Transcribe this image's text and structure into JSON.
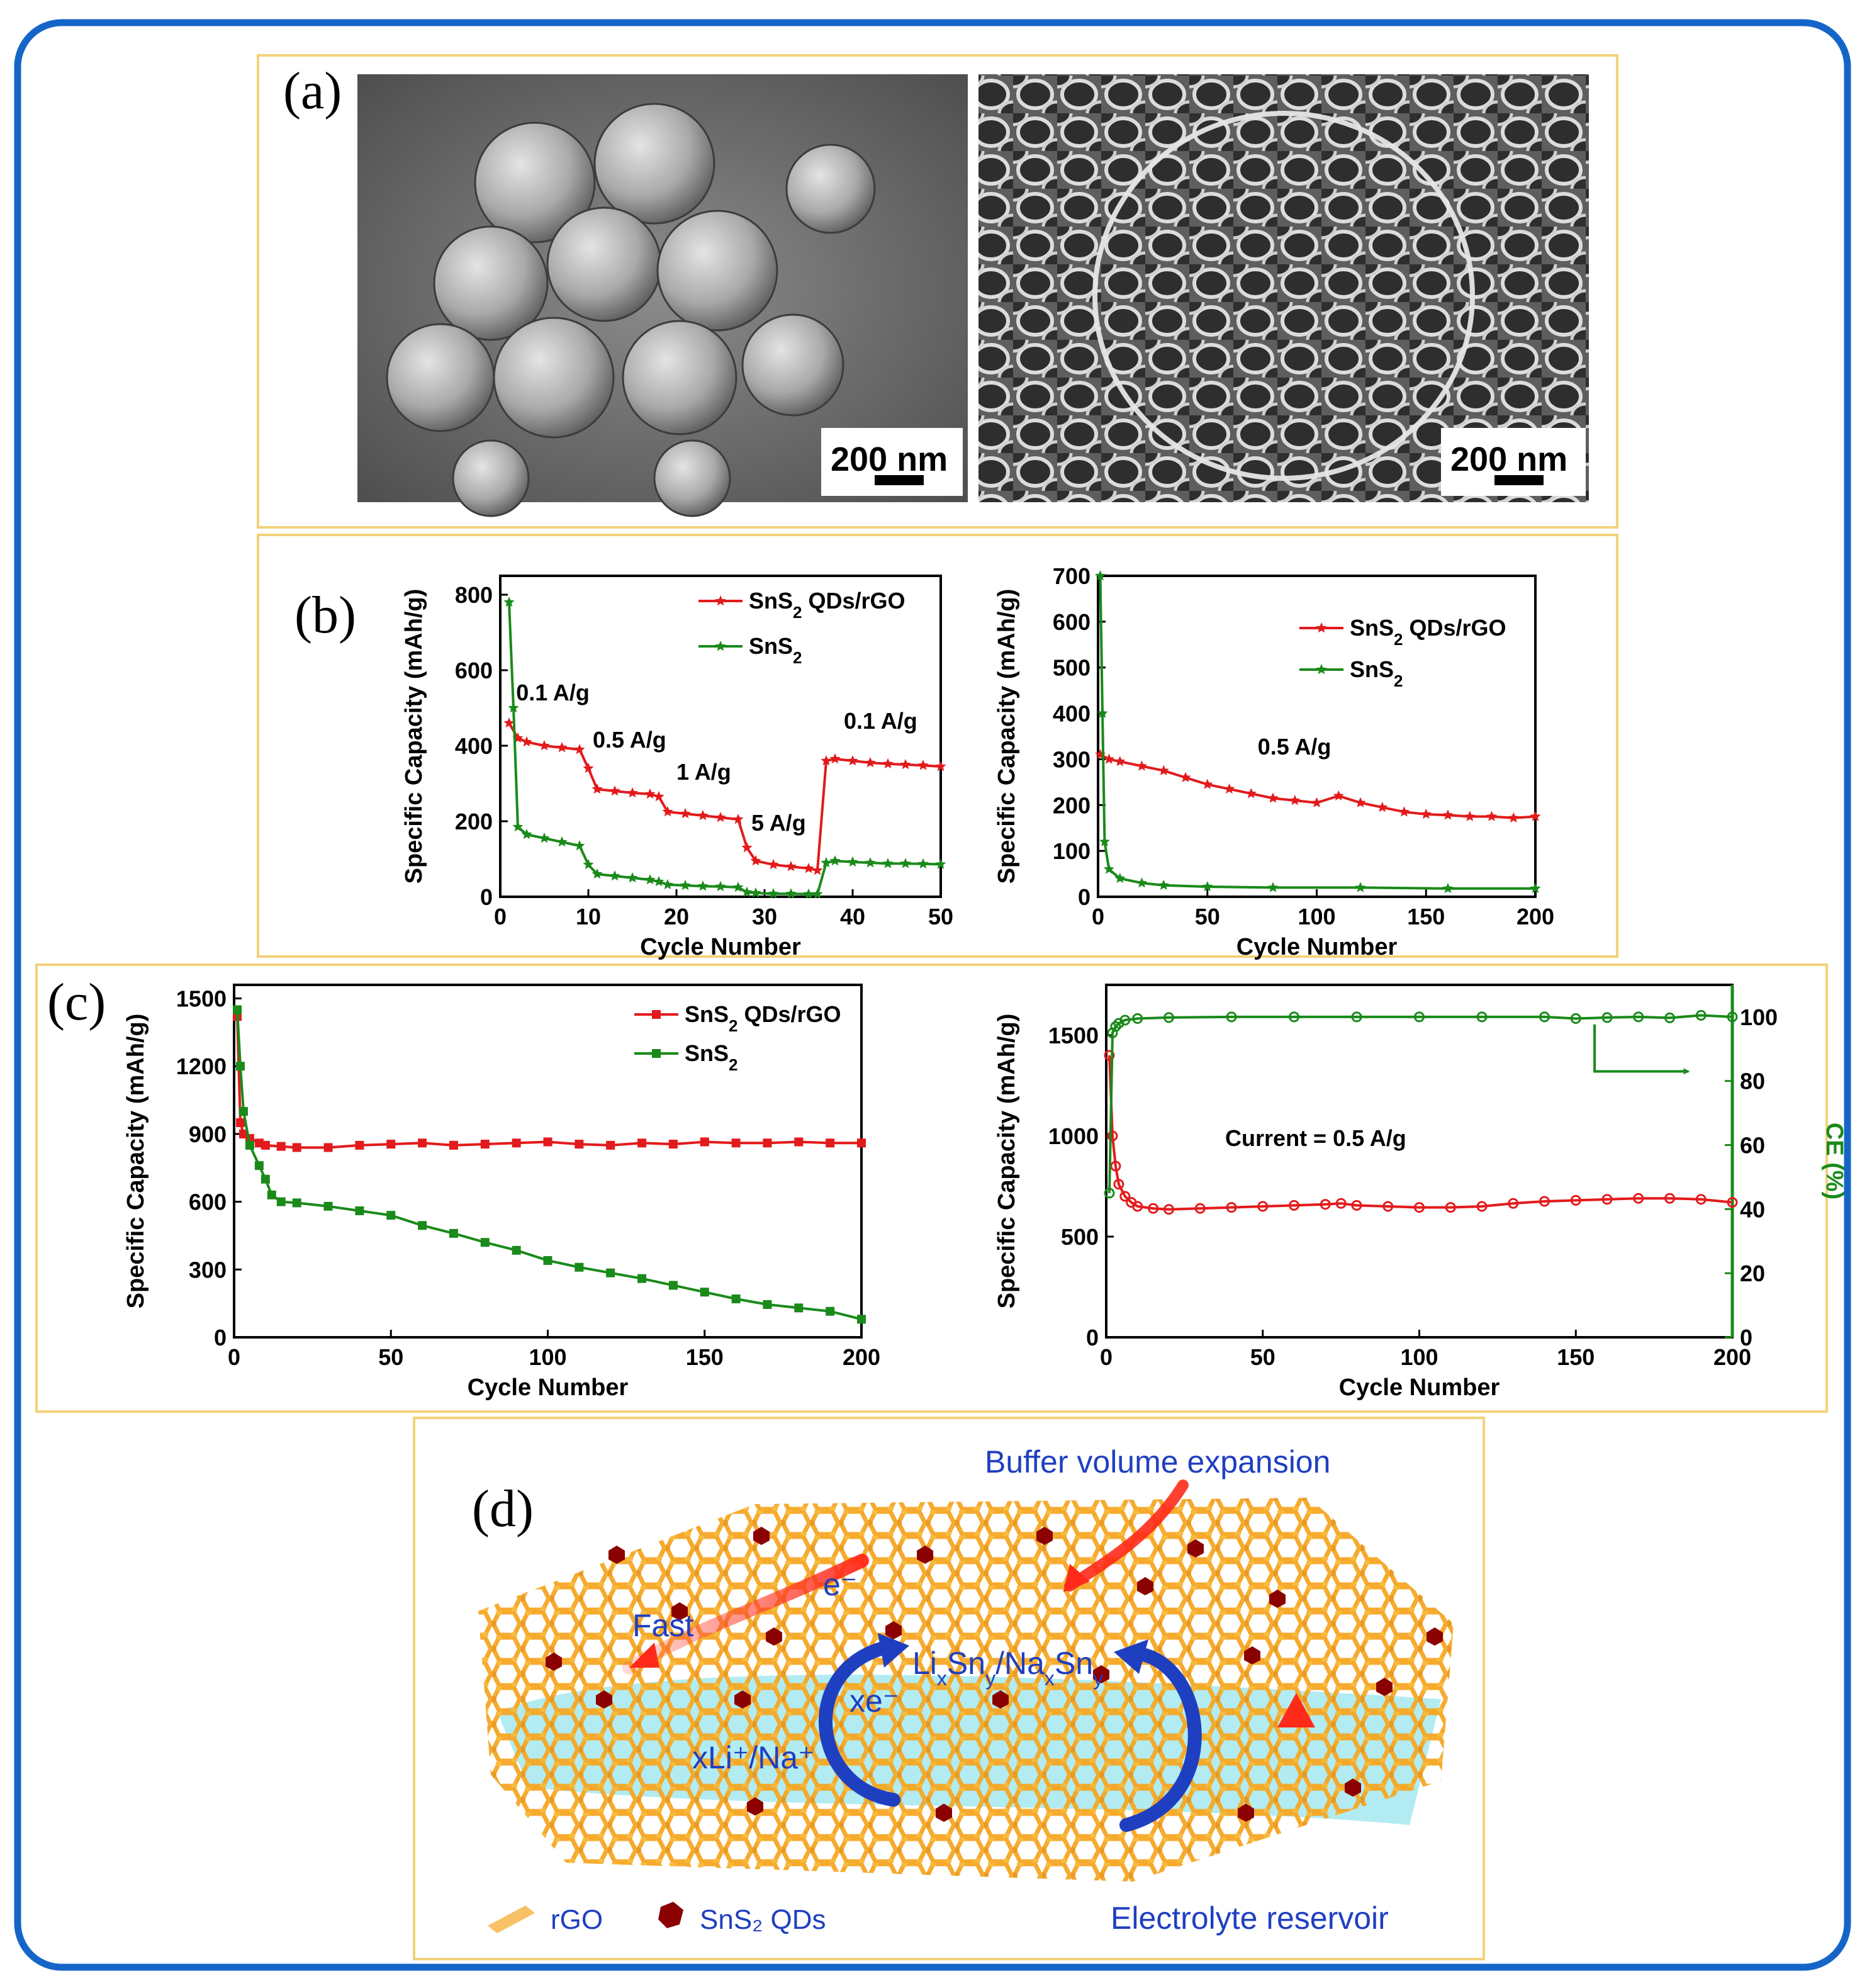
{
  "colors": {
    "frame_border": "#1565c8",
    "panel_border": "#f2d27a",
    "series_red": "#e31a1c",
    "series_green": "#1a8a1a",
    "schematic_blue": "#1f3fc1",
    "rgo_orange": "#f5a623",
    "qd_red": "#8b0000",
    "electrolyte_cyan": "#7fe0ea"
  },
  "panels": {
    "a": {
      "letter": "(a)",
      "images": [
        {
          "name": "sem-sns2-qds-rgo-spheres",
          "scale_bar": "200 nm"
        },
        {
          "name": "sem-sns2-honeycomb",
          "scale_bar": "200 nm"
        }
      ]
    },
    "b": {
      "letter": "(b)"
    },
    "c": {
      "letter": "(c)"
    },
    "d": {
      "letter": "(d)",
      "labels": {
        "buffer": "Buffer volume expansion",
        "e_minus": "e⁻",
        "fast": "Fast",
        "lixsny_html": "Li<tspan baseline-shift='sub' font-size='32'>x</tspan>Sn<tspan baseline-shift='sub' font-size='32'>y</tspan>/Na<tspan baseline-shift='sub' font-size='32'>x</tspan>Sn<tspan baseline-shift='sub' font-size='32'>y</tspan>",
        "xe_minus": "xe⁻",
        "xli_na": "xLi⁺/Na⁺",
        "electrolyte": "Electrolyte reservoir",
        "legend_rgo": "rGO",
        "legend_qds": "SnS₂ QDs"
      }
    }
  },
  "chart_data": [
    {
      "id": "b-rate",
      "type": "line",
      "xlabel": "Cycle Number",
      "ylabel": "Specific Capacity (mAh/g)",
      "xlim": [
        0,
        50
      ],
      "ylim": [
        0,
        850
      ],
      "xticks": [
        0,
        10,
        20,
        30,
        40,
        50
      ],
      "yticks": [
        0,
        200,
        400,
        600,
        800
      ],
      "legend": "top-right",
      "annotations": [
        {
          "text": "0.1 A/g",
          "x": 1.8,
          "y": 520
        },
        {
          "text": "0.5 A/g",
          "x": 10.5,
          "y": 395
        },
        {
          "text": "1 A/g",
          "x": 20,
          "y": 310
        },
        {
          "text": "5 A/g",
          "x": 28.5,
          "y": 175
        },
        {
          "text": "0.1 A/g",
          "x": 39,
          "y": 445
        }
      ],
      "series": [
        {
          "name": "SnS₂ QDs/rGO",
          "color": "red",
          "marker": "star",
          "x": [
            1,
            2,
            3,
            5,
            7,
            9,
            10,
            11,
            13,
            15,
            17,
            18,
            19,
            21,
            23,
            25,
            27,
            28,
            29,
            31,
            33,
            35,
            36,
            37,
            38,
            40,
            42,
            44,
            46,
            48,
            50
          ],
          "y": [
            460,
            420,
            410,
            400,
            395,
            390,
            340,
            285,
            280,
            275,
            272,
            265,
            225,
            220,
            215,
            210,
            205,
            130,
            95,
            85,
            80,
            75,
            70,
            360,
            365,
            360,
            355,
            352,
            350,
            348,
            345
          ]
        },
        {
          "name": "SnS₂",
          "color": "green",
          "marker": "star",
          "x": [
            1,
            1.5,
            2,
            3,
            5,
            7,
            9,
            10,
            11,
            13,
            15,
            17,
            18,
            19,
            21,
            23,
            25,
            27,
            28,
            29,
            31,
            33,
            35,
            36,
            37,
            38,
            40,
            42,
            44,
            46,
            48,
            50
          ],
          "y": [
            780,
            500,
            185,
            165,
            155,
            145,
            135,
            85,
            60,
            55,
            50,
            45,
            40,
            32,
            30,
            28,
            27,
            25,
            12,
            10,
            8,
            8,
            7,
            7,
            90,
            95,
            92,
            90,
            88,
            88,
            87,
            86
          ]
        }
      ]
    },
    {
      "id": "b-cycle",
      "type": "line",
      "xlabel": "Cycle Number",
      "ylabel": "Specific Capacity (mAh/g)",
      "xlim": [
        0,
        200
      ],
      "ylim": [
        0,
        700
      ],
      "xticks": [
        0,
        50,
        100,
        150,
        200
      ],
      "yticks": [
        0,
        100,
        200,
        300,
        400,
        500,
        600,
        700
      ],
      "legend": "top-right",
      "annotations": [
        {
          "text": "0.5 A/g",
          "x": 73,
          "y": 310
        }
      ],
      "series": [
        {
          "name": "SnS₂ QDs/rGO",
          "color": "red",
          "marker": "star",
          "x": [
            1,
            5,
            10,
            20,
            30,
            40,
            50,
            60,
            70,
            80,
            90,
            100,
            110,
            120,
            130,
            140,
            150,
            160,
            170,
            180,
            190,
            200
          ],
          "y": [
            310,
            300,
            295,
            285,
            275,
            260,
            245,
            235,
            225,
            215,
            210,
            205,
            220,
            205,
            195,
            185,
            180,
            178,
            175,
            175,
            172,
            175
          ]
        },
        {
          "name": "SnS₂",
          "color": "green",
          "marker": "star",
          "x": [
            1,
            2,
            3,
            5,
            10,
            20,
            30,
            50,
            80,
            120,
            160,
            200
          ],
          "y": [
            700,
            400,
            120,
            60,
            40,
            30,
            25,
            22,
            20,
            20,
            18,
            18
          ]
        }
      ]
    },
    {
      "id": "c-cycle",
      "type": "line",
      "xlabel": "Cycle Number",
      "ylabel": "Specific Capacity (mAh/g)",
      "xlim": [
        0,
        200
      ],
      "ylim": [
        0,
        1560
      ],
      "xticks": [
        0,
        50,
        100,
        150,
        200
      ],
      "yticks": [
        0,
        300,
        600,
        900,
        1200,
        1500
      ],
      "legend": "top-right",
      "series": [
        {
          "name": "SnS₂ QDs/rGO",
          "color": "red",
          "marker": "square",
          "x": [
            1,
            2,
            3,
            5,
            8,
            10,
            15,
            20,
            30,
            40,
            50,
            60,
            70,
            80,
            90,
            100,
            110,
            120,
            130,
            140,
            150,
            160,
            170,
            180,
            190,
            200
          ],
          "y": [
            1420,
            950,
            900,
            880,
            860,
            850,
            845,
            840,
            840,
            850,
            855,
            860,
            850,
            855,
            860,
            865,
            855,
            850,
            860,
            855,
            865,
            860,
            860,
            865,
            860,
            860
          ]
        },
        {
          "name": "SnS₂",
          "color": "green",
          "marker": "square",
          "x": [
            1,
            2,
            3,
            5,
            8,
            10,
            12,
            15,
            20,
            30,
            40,
            50,
            60,
            70,
            80,
            90,
            100,
            110,
            120,
            130,
            140,
            150,
            160,
            170,
            180,
            190,
            200
          ],
          "y": [
            1450,
            1200,
            1000,
            850,
            760,
            700,
            630,
            600,
            595,
            580,
            560,
            540,
            495,
            460,
            420,
            385,
            340,
            310,
            285,
            260,
            230,
            200,
            170,
            145,
            130,
            115,
            80
          ]
        }
      ]
    },
    {
      "id": "c-ce",
      "type": "line",
      "xlabel": "Cycle Number",
      "ylabel": "Specific Capacity (mAh/g)",
      "y2label": "CE (%)",
      "xlim": [
        0,
        200
      ],
      "ylim": [
        0,
        1750
      ],
      "y2lim": [
        0,
        110
      ],
      "xticks": [
        0,
        50,
        100,
        150,
        200
      ],
      "yticks": [
        0,
        500,
        1000,
        1500
      ],
      "y2ticks": [
        0,
        20,
        40,
        60,
        80,
        100
      ],
      "annotations": [
        {
          "text": "Current = 0.5 A/g",
          "x": 38,
          "y": 950
        }
      ],
      "series": [
        {
          "name": "Capacity",
          "color": "red",
          "marker": "circle",
          "axis": "left",
          "x": [
            1,
            2,
            3,
            4,
            6,
            8,
            10,
            15,
            20,
            30,
            40,
            50,
            60,
            70,
            75,
            80,
            90,
            100,
            110,
            120,
            130,
            140,
            150,
            160,
            170,
            180,
            190,
            200
          ],
          "y": [
            1400,
            1000,
            850,
            760,
            700,
            670,
            650,
            640,
            635,
            640,
            645,
            650,
            655,
            660,
            665,
            655,
            650,
            645,
            645,
            650,
            665,
            675,
            680,
            685,
            690,
            690,
            685,
            670
          ]
        },
        {
          "name": "CE",
          "color": "green",
          "marker": "circle",
          "axis": "right",
          "x": [
            1,
            2,
            3,
            4,
            6,
            10,
            20,
            40,
            60,
            80,
            100,
            120,
            140,
            150,
            160,
            170,
            180,
            190,
            200
          ],
          "y": [
            45,
            95,
            97,
            98,
            99,
            99.5,
            99.8,
            100,
            100,
            100,
            100,
            100,
            100,
            99.5,
            99.8,
            100,
            99.7,
            100.5,
            100
          ]
        }
      ]
    }
  ],
  "chart_text": {
    "b_rate": {
      "xlabel": "Cycle Number",
      "ylabel": "Specific Capacity (mAh/g)",
      "legend_1": "SnS<tspan baseline-shift='sub' font-size='26'>2</tspan> QDs/rGO",
      "legend_2": "SnS<tspan baseline-shift='sub' font-size='26'>2</tspan>"
    },
    "b_cycle": {
      "xlabel": "Cycle Number",
      "ylabel": "Specific Capacity (mAh/g)",
      "legend_1": "SnS<tspan baseline-shift='sub' font-size='26'>2</tspan> QDs/rGO",
      "legend_2": "SnS<tspan baseline-shift='sub' font-size='26'>2</tspan>"
    },
    "c_cycle": {
      "xlabel": "Cycle Number",
      "ylabel": "Specific Capacity (mAh/g)",
      "legend_1": "SnS<tspan baseline-shift='sub' font-size='26'>2</tspan> QDs/rGO",
      "legend_2": "SnS<tspan baseline-shift='sub' font-size='26'>2</tspan>"
    },
    "c_ce": {
      "xlabel": "Cycle Number",
      "ylabel": "Specific Capacity (mAh/g)",
      "y2label": "CE (%)"
    }
  }
}
